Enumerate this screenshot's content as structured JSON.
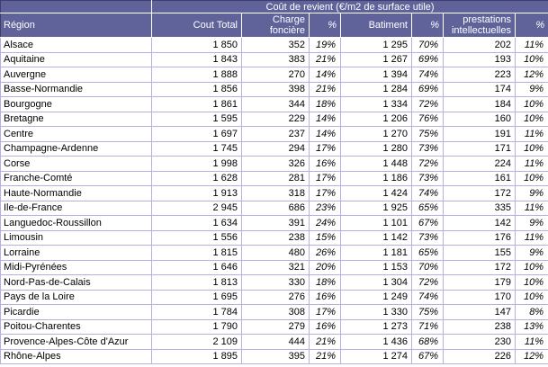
{
  "colors": {
    "header_bg": "#5f639a",
    "header_text": "#ffffff",
    "header_outline": "#3e3e6d",
    "grid": "#b2b2de",
    "body_text": "#000000"
  },
  "chart_data": {
    "type": "table",
    "title": "Coût de revient (€/m2 de surface utile)",
    "columns": [
      "Région",
      "Cout Total",
      "Charge foncière",
      "%",
      "Batiment",
      "%",
      "prestations intellectuelles",
      "%"
    ],
    "rows": [
      [
        "Alsace",
        "1 850",
        "352",
        "19%",
        "1 295",
        "70%",
        "202",
        "11%"
      ],
      [
        "Aquitaine",
        "1 843",
        "383",
        "21%",
        "1 267",
        "69%",
        "193",
        "10%"
      ],
      [
        "Auvergne",
        "1 888",
        "270",
        "14%",
        "1 394",
        "74%",
        "223",
        "12%"
      ],
      [
        "Basse-Normandie",
        "1 856",
        "398",
        "21%",
        "1 284",
        "69%",
        "174",
        "9%"
      ],
      [
        "Bourgogne",
        "1 861",
        "344",
        "18%",
        "1 334",
        "72%",
        "184",
        "10%"
      ],
      [
        "Bretagne",
        "1 595",
        "229",
        "14%",
        "1 206",
        "76%",
        "160",
        "10%"
      ],
      [
        "Centre",
        "1 697",
        "237",
        "14%",
        "1 270",
        "75%",
        "191",
        "11%"
      ],
      [
        "Champagne-Ardenne",
        "1 745",
        "294",
        "17%",
        "1 280",
        "73%",
        "171",
        "10%"
      ],
      [
        "Corse",
        "1 998",
        "326",
        "16%",
        "1 448",
        "72%",
        "224",
        "11%"
      ],
      [
        "Franche-Comté",
        "1 628",
        "281",
        "17%",
        "1 186",
        "73%",
        "161",
        "10%"
      ],
      [
        "Haute-Normandie",
        "1 913",
        "318",
        "17%",
        "1 424",
        "74%",
        "172",
        "9%"
      ],
      [
        "Ile-de-France",
        "2 945",
        "686",
        "23%",
        "1 925",
        "65%",
        "335",
        "11%"
      ],
      [
        "Languedoc-Roussillon",
        "1 634",
        "391",
        "24%",
        "1 101",
        "67%",
        "142",
        "9%"
      ],
      [
        "Limousin",
        "1 556",
        "238",
        "15%",
        "1 142",
        "73%",
        "176",
        "11%"
      ],
      [
        "Lorraine",
        "1 815",
        "480",
        "26%",
        "1 181",
        "65%",
        "155",
        "9%"
      ],
      [
        "Midi-Pyrénées",
        "1 646",
        "321",
        "20%",
        "1 153",
        "70%",
        "172",
        "10%"
      ],
      [
        "Nord-Pas-de-Calais",
        "1 813",
        "330",
        "18%",
        "1 304",
        "72%",
        "179",
        "10%"
      ],
      [
        "Pays de la Loire",
        "1 695",
        "276",
        "16%",
        "1 249",
        "74%",
        "170",
        "10%"
      ],
      [
        "Picardie",
        "1 784",
        "308",
        "17%",
        "1 330",
        "75%",
        "147",
        "8%"
      ],
      [
        "Poitou-Charentes",
        "1 790",
        "279",
        "16%",
        "1 273",
        "71%",
        "238",
        "13%"
      ],
      [
        "Provence-Alpes-Côte d'Azur",
        "2 109",
        "444",
        "21%",
        "1 436",
        "68%",
        "230",
        "11%"
      ],
      [
        "Rhône-Alpes",
        "1 895",
        "395",
        "21%",
        "1 274",
        "67%",
        "226",
        "12%"
      ]
    ]
  }
}
